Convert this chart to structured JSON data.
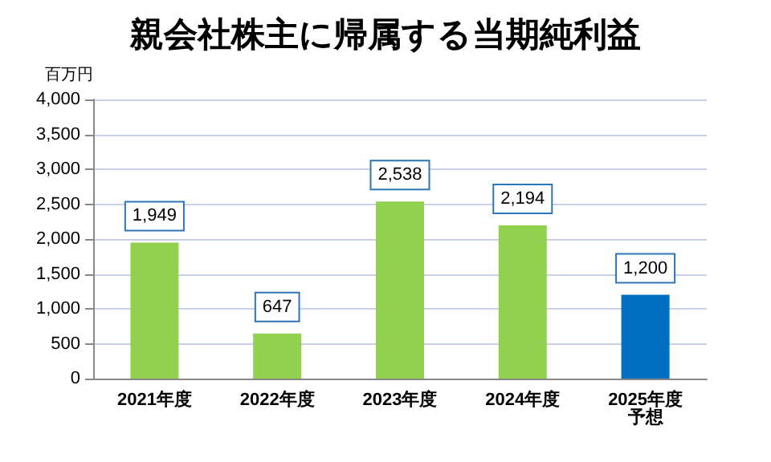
{
  "chart_data": {
    "type": "bar",
    "title": "親会社株主に帰属する当期純利益",
    "ylabel": "百万円",
    "categories": [
      "2021年度",
      "2022年度",
      "2023年度",
      "2024年度",
      "2025年度予想"
    ],
    "values": [
      1949,
      647,
      2538,
      2194,
      1200
    ],
    "value_labels": [
      "1,949",
      "647",
      "2,538",
      "2,194",
      "1,200"
    ],
    "colors": [
      "#92d050",
      "#92d050",
      "#92d050",
      "#92d050",
      "#0070c0"
    ],
    "ylim": [
      0,
      4000
    ],
    "yticks": [
      0,
      500,
      {
        "value": 1000,
        "label": "1,000"
      },
      {
        "value": 1500,
        "label": "1,500"
      },
      {
        "value": 2000,
        "label": "2,000"
      },
      {
        "value": 2500,
        "label": "2,500"
      },
      {
        "value": 3000,
        "label": "3,000"
      },
      {
        "value": 3500,
        "label": "3,500"
      },
      {
        "value": 4000,
        "label": "4,000"
      }
    ],
    "grid": "y"
  }
}
